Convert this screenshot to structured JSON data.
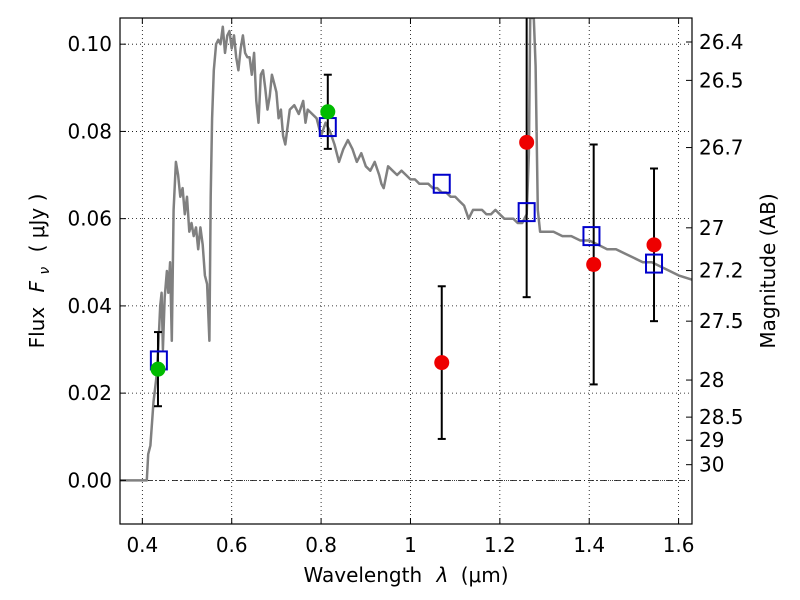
{
  "chart_data": {
    "type": "scatter",
    "xlabel": "Wavelength",
    "xlabel_symbol": "λ",
    "xlabel_unit": "(μm)",
    "ylabel": "Flux",
    "ylabel_symbol": "F",
    "ylabel_subscript": "ν",
    "ylabel_unit": "( μJy )",
    "y2label": "Magnitude (AB)",
    "xlim": [
      0.35,
      1.63
    ],
    "ylim": [
      -0.01,
      0.106
    ],
    "xticks": [
      0.4,
      0.6,
      0.8,
      1.0,
      1.2,
      1.4,
      1.6
    ],
    "xtick_labels": [
      "0.4",
      "0.6",
      "0.8",
      "1",
      "1.2",
      "1.4",
      "1.6"
    ],
    "yticks": [
      0.0,
      0.02,
      0.04,
      0.06,
      0.08,
      0.1
    ],
    "ytick_labels": [
      "0.00",
      "0.02",
      "0.04",
      "0.06",
      "0.08",
      "0.10"
    ],
    "mag_ticks": [
      {
        "label": "26.4",
        "flux": 0.1005
      },
      {
        "label": "26.5",
        "flux": 0.0917
      },
      {
        "label": "26.7",
        "flux": 0.0763
      },
      {
        "label": "27",
        "flux": 0.0579
      },
      {
        "label": "27.2",
        "flux": 0.0481
      },
      {
        "label": "27.5",
        "flux": 0.0365
      },
      {
        "label": "28",
        "flux": 0.023
      },
      {
        "label": "28.5",
        "flux": 0.0145
      },
      {
        "label": "29",
        "flux": 0.0092
      },
      {
        "label": "30",
        "flux": 0.0036
      }
    ],
    "grid": true,
    "colors": {
      "sed": "#808080",
      "detections": "#00bb00",
      "upper_limits": "#ee0000",
      "model": "#0000cc",
      "errorbar": "#000000"
    },
    "series": [
      {
        "kind": "line",
        "points": [
          [
            0.35,
            0.0
          ],
          [
            0.4,
            0.0
          ],
          [
            0.41,
            0.0
          ],
          [
            0.413,
            0.006
          ],
          [
            0.418,
            0.008
          ],
          [
            0.425,
            0.018
          ],
          [
            0.432,
            0.024
          ],
          [
            0.436,
            0.031
          ],
          [
            0.44,
            0.04
          ],
          [
            0.443,
            0.043
          ],
          [
            0.446,
            0.03
          ],
          [
            0.45,
            0.042
          ],
          [
            0.455,
            0.048
          ],
          [
            0.458,
            0.043
          ],
          [
            0.462,
            0.05
          ],
          [
            0.466,
            0.032
          ],
          [
            0.47,
            0.062
          ],
          [
            0.475,
            0.073
          ],
          [
            0.48,
            0.07
          ],
          [
            0.485,
            0.065
          ],
          [
            0.49,
            0.067
          ],
          [
            0.495,
            0.061
          ],
          [
            0.5,
            0.065
          ],
          [
            0.505,
            0.057
          ],
          [
            0.51,
            0.059
          ],
          [
            0.515,
            0.056
          ],
          [
            0.52,
            0.058
          ],
          [
            0.525,
            0.053
          ],
          [
            0.53,
            0.058
          ],
          [
            0.535,
            0.054
          ],
          [
            0.54,
            0.047
          ],
          [
            0.545,
            0.045
          ],
          [
            0.55,
            0.032
          ],
          [
            0.553,
            0.065
          ],
          [
            0.556,
            0.083
          ],
          [
            0.56,
            0.094
          ],
          [
            0.565,
            0.1
          ],
          [
            0.57,
            0.101
          ],
          [
            0.575,
            0.1
          ],
          [
            0.58,
            0.104
          ],
          [
            0.585,
            0.098
          ],
          [
            0.59,
            0.102
          ],
          [
            0.595,
            0.103
          ],
          [
            0.6,
            0.099
          ],
          [
            0.605,
            0.102
          ],
          [
            0.61,
            0.097
          ],
          [
            0.615,
            0.094
          ],
          [
            0.62,
            0.099
          ],
          [
            0.625,
            0.102
          ],
          [
            0.63,
            0.098
          ],
          [
            0.635,
            0.097
          ],
          [
            0.64,
            0.097
          ],
          [
            0.645,
            0.093
          ],
          [
            0.65,
            0.098
          ],
          [
            0.655,
            0.087
          ],
          [
            0.66,
            0.082
          ],
          [
            0.665,
            0.093
          ],
          [
            0.67,
            0.094
          ],
          [
            0.675,
            0.09
          ],
          [
            0.68,
            0.085
          ],
          [
            0.685,
            0.088
          ],
          [
            0.69,
            0.093
          ],
          [
            0.695,
            0.091
          ],
          [
            0.7,
            0.089
          ],
          [
            0.705,
            0.083
          ],
          [
            0.71,
            0.085
          ],
          [
            0.715,
            0.079
          ],
          [
            0.72,
            0.077
          ],
          [
            0.73,
            0.085
          ],
          [
            0.74,
            0.086
          ],
          [
            0.75,
            0.084
          ],
          [
            0.76,
            0.087
          ],
          [
            0.765,
            0.082
          ],
          [
            0.77,
            0.085
          ],
          [
            0.78,
            0.084
          ],
          [
            0.79,
            0.083
          ],
          [
            0.8,
            0.079
          ],
          [
            0.81,
            0.082
          ],
          [
            0.82,
            0.08
          ],
          [
            0.83,
            0.077
          ],
          [
            0.84,
            0.073
          ],
          [
            0.85,
            0.076
          ],
          [
            0.86,
            0.078
          ],
          [
            0.87,
            0.076
          ],
          [
            0.88,
            0.073
          ],
          [
            0.89,
            0.075
          ],
          [
            0.9,
            0.072
          ],
          [
            0.91,
            0.071
          ],
          [
            0.92,
            0.073
          ],
          [
            0.93,
            0.07
          ],
          [
            0.935,
            0.068
          ],
          [
            0.94,
            0.067
          ],
          [
            0.95,
            0.072
          ],
          [
            0.96,
            0.071
          ],
          [
            0.97,
            0.07
          ],
          [
            0.98,
            0.071
          ],
          [
            0.99,
            0.07
          ],
          [
            1.0,
            0.069
          ],
          [
            1.01,
            0.069
          ],
          [
            1.02,
            0.068
          ],
          [
            1.03,
            0.068
          ],
          [
            1.04,
            0.068
          ],
          [
            1.05,
            0.067
          ],
          [
            1.06,
            0.067
          ],
          [
            1.07,
            0.066
          ],
          [
            1.08,
            0.066
          ],
          [
            1.09,
            0.065
          ],
          [
            1.1,
            0.065
          ],
          [
            1.11,
            0.064
          ],
          [
            1.12,
            0.063
          ],
          [
            1.13,
            0.06
          ],
          [
            1.14,
            0.062
          ],
          [
            1.15,
            0.062
          ],
          [
            1.16,
            0.062
          ],
          [
            1.17,
            0.061
          ],
          [
            1.18,
            0.061
          ],
          [
            1.19,
            0.062
          ],
          [
            1.2,
            0.061
          ],
          [
            1.21,
            0.06
          ],
          [
            1.22,
            0.06
          ],
          [
            1.23,
            0.06
          ],
          [
            1.24,
            0.059
          ],
          [
            1.25,
            0.059
          ],
          [
            1.26,
            0.061
          ],
          [
            1.265,
            0.075
          ],
          [
            1.268,
            0.106
          ],
          [
            1.272,
            0.106
          ],
          [
            1.276,
            0.106
          ],
          [
            1.28,
            0.095
          ],
          [
            1.285,
            0.062
          ],
          [
            1.29,
            0.057
          ],
          [
            1.3,
            0.057
          ],
          [
            1.32,
            0.057
          ],
          [
            1.34,
            0.056
          ],
          [
            1.36,
            0.056
          ],
          [
            1.38,
            0.055
          ],
          [
            1.4,
            0.055
          ],
          [
            1.42,
            0.054
          ],
          [
            1.44,
            0.053
          ],
          [
            1.46,
            0.053
          ],
          [
            1.48,
            0.052
          ],
          [
            1.5,
            0.051
          ],
          [
            1.52,
            0.05
          ],
          [
            1.54,
            0.05
          ],
          [
            1.56,
            0.049
          ],
          [
            1.58,
            0.048
          ],
          [
            1.6,
            0.047
          ],
          [
            1.63,
            0.046
          ]
        ]
      },
      {
        "kind": "points",
        "points": [
          {
            "x": 0.435,
            "y": 0.0255,
            "err": 0.0085
          },
          {
            "x": 0.815,
            "y": 0.0845,
            "err": 0.0085
          }
        ]
      },
      {
        "kind": "points",
        "points": [
          {
            "x": 1.07,
            "y": 0.027,
            "err": 0.0175
          },
          {
            "x": 1.26,
            "y": 0.0775,
            "err": 0.0355
          },
          {
            "x": 1.41,
            "y": 0.0495,
            "err": 0.0275
          },
          {
            "x": 1.545,
            "y": 0.054,
            "err": 0.0175
          }
        ]
      },
      {
        "kind": "boxes",
        "points": [
          {
            "x": 0.437,
            "y": 0.0275
          },
          {
            "x": 0.815,
            "y": 0.081
          },
          {
            "x": 1.07,
            "y": 0.068
          },
          {
            "x": 1.26,
            "y": 0.0615
          },
          {
            "x": 1.405,
            "y": 0.056
          },
          {
            "x": 1.545,
            "y": 0.0497
          }
        ]
      }
    ]
  }
}
